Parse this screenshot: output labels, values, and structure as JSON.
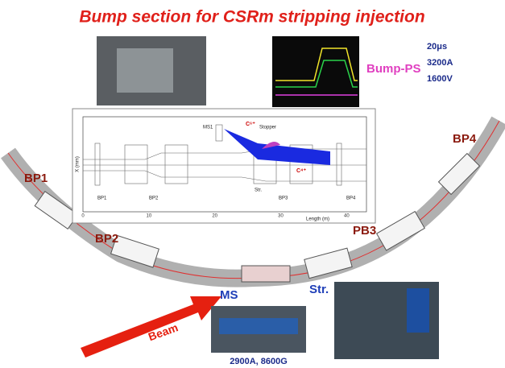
{
  "header": {
    "title": "Bump section for CSRm stripping injection"
  },
  "scope": {
    "label": "Bump-PS",
    "specs": [
      "20μs",
      "3200A",
      "1600V"
    ]
  },
  "ring": {
    "labels": [
      "BP1",
      "BP2",
      "PB3",
      "BP4"
    ],
    "ms": "MS",
    "str": "Str.",
    "beam": "Beam"
  },
  "photo": {
    "caption": "2900A, 8600G"
  },
  "inset": {
    "x_label": "Length (m)",
    "y_label": "X (mm)",
    "x_ticks": [
      0,
      10,
      20,
      30,
      40
    ],
    "elements": [
      "BP1",
      "BP2",
      "Str.",
      "BP3",
      "BP4"
    ],
    "ms1": "MS1",
    "stopper": "Stopper",
    "c6": "C⁶⁺",
    "c4": "C⁴⁺"
  }
}
